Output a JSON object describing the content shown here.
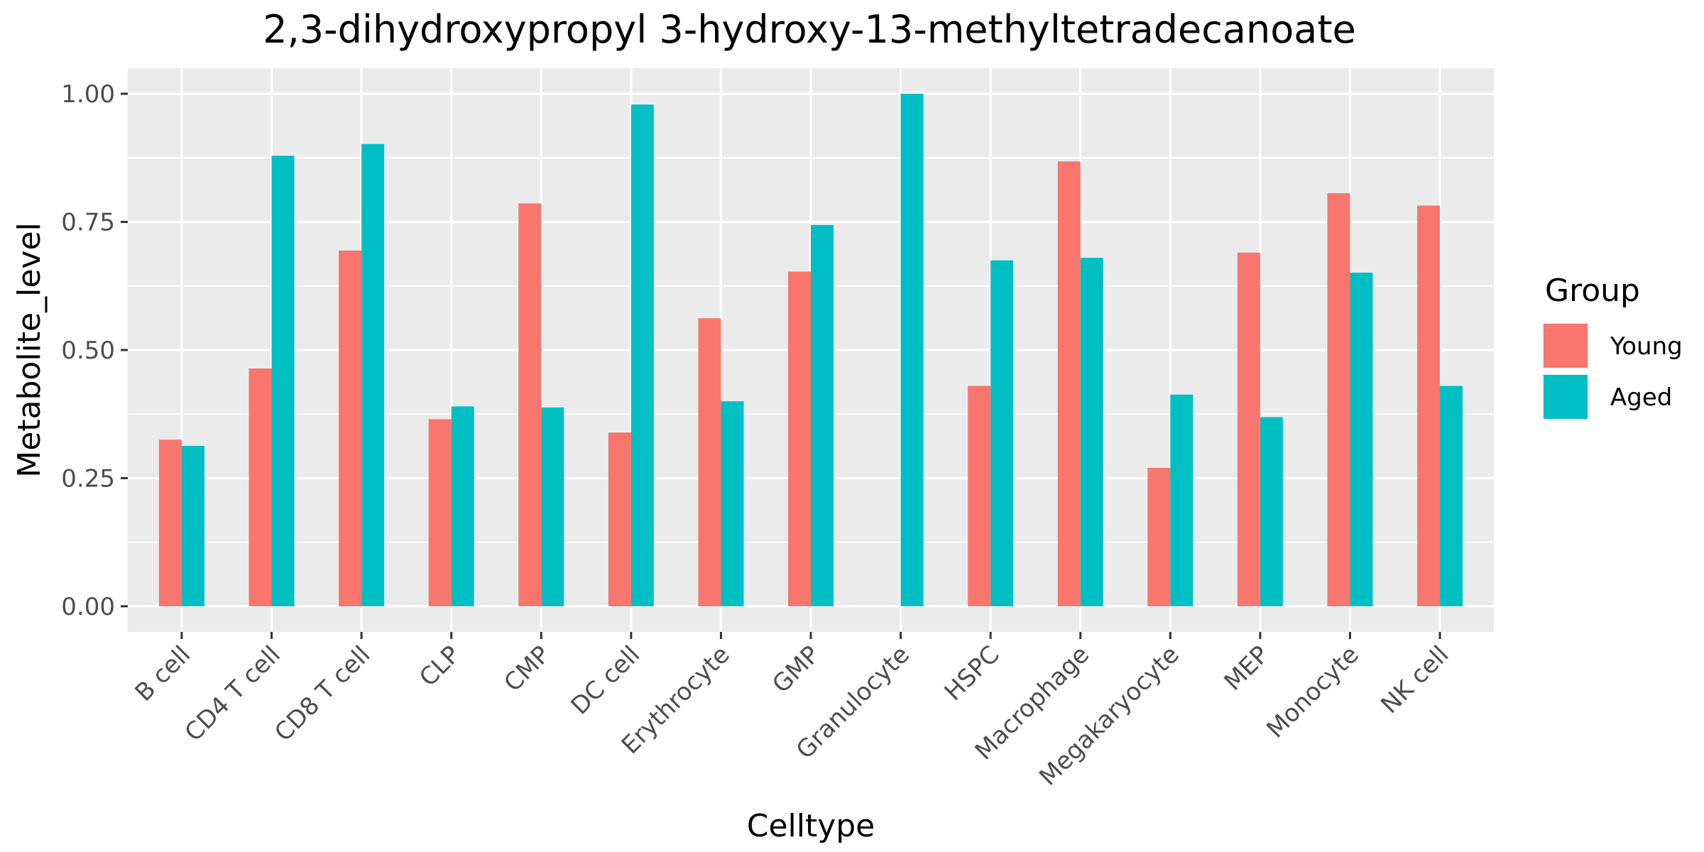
{
  "chart_data": {
    "type": "bar",
    "title": "2,3-dihydroxypropyl 3-hydroxy-13-methyltetradecanoate",
    "xlabel": "Celltype",
    "ylabel": "Metabolite_level",
    "ylim": [
      -0.05,
      1.05
    ],
    "yticks": [
      0.0,
      0.25,
      0.5,
      0.75,
      1.0
    ],
    "ytick_labels": [
      "0.00",
      "0.25",
      "0.50",
      "0.75",
      "1.00"
    ],
    "grid": true,
    "legend": {
      "title": "Group",
      "position": "right"
    },
    "categories": [
      "B cell",
      "CD4 T cell",
      "CD8 T cell",
      "CLP",
      "CMP",
      "DC cell",
      "Erythrocyte",
      "GMP",
      "Granulocyte",
      "HSPC",
      "Macrophage",
      "Megakaryocyte",
      "MEP",
      "Monocyte",
      "NK cell"
    ],
    "series": [
      {
        "name": "Young",
        "color": "#F8766D",
        "values": [
          0.325,
          0.464,
          0.694,
          0.365,
          0.786,
          0.339,
          0.562,
          0.653,
          0.0,
          0.43,
          0.868,
          0.27,
          0.69,
          0.806,
          0.782
        ]
      },
      {
        "name": "Aged",
        "color": "#00BFC4",
        "values": [
          0.313,
          0.879,
          0.902,
          0.39,
          0.388,
          0.979,
          0.4,
          0.744,
          1.0,
          0.675,
          0.68,
          0.413,
          0.369,
          0.651,
          0.43
        ]
      }
    ]
  }
}
